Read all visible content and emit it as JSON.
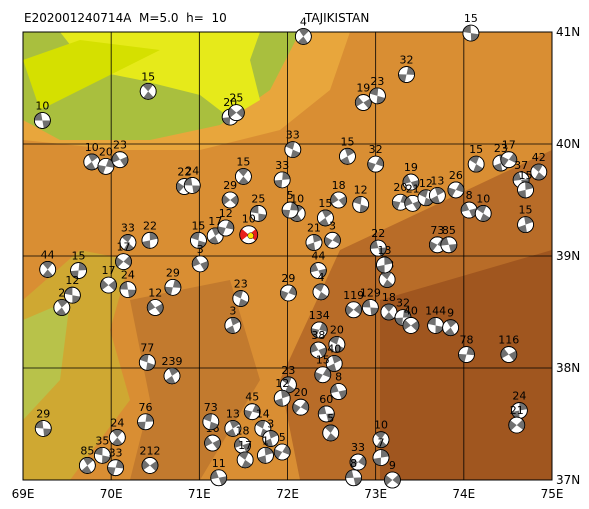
{
  "map": {
    "title": "E202001240714A  M=5.0  h=  10",
    "region": "TAJIKISTAN",
    "xlim": [
      69,
      75
    ],
    "ylim": [
      37,
      41
    ],
    "xticks": [
      {
        "value": 69,
        "label": "69E"
      },
      {
        "value": 70,
        "label": "70E"
      },
      {
        "value": 71,
        "label": "71E"
      },
      {
        "value": 72,
        "label": "72E"
      },
      {
        "value": 73,
        "label": "73E"
      },
      {
        "value": 74,
        "label": "74E"
      },
      {
        "value": 75,
        "label": "75E"
      }
    ],
    "yticks": [
      {
        "value": 37,
        "label": "37N"
      },
      {
        "value": 38,
        "label": "38N"
      },
      {
        "value": 39,
        "label": "39N"
      },
      {
        "value": 40,
        "label": "40N"
      },
      {
        "value": 41,
        "label": "41N"
      }
    ],
    "grid": true,
    "ball_color": "#707070",
    "main_event": {
      "lon": 71.56,
      "lat": 39.19,
      "depth": 10,
      "color": "#e8201c"
    },
    "events": [
      {
        "lon": 69.22,
        "lat": 40.21,
        "depth": 10
      },
      {
        "lon": 70.42,
        "lat": 40.47,
        "depth": 15
      },
      {
        "lon": 71.35,
        "lat": 40.24,
        "depth": 20
      },
      {
        "lon": 71.42,
        "lat": 40.28,
        "depth": 25
      },
      {
        "lon": 74.08,
        "lat": 40.99,
        "depth": 15
      },
      {
        "lon": 72.18,
        "lat": 40.96,
        "depth": 4
      },
      {
        "lon": 73.35,
        "lat": 40.62,
        "depth": 32
      },
      {
        "lon": 72.86,
        "lat": 40.37,
        "depth": 19
      },
      {
        "lon": 73.02,
        "lat": 40.43,
        "depth": 23
      },
      {
        "lon": 69.78,
        "lat": 39.84,
        "depth": 10
      },
      {
        "lon": 69.94,
        "lat": 39.8,
        "depth": 20
      },
      {
        "lon": 70.1,
        "lat": 39.86,
        "depth": 23
      },
      {
        "lon": 72.06,
        "lat": 39.95,
        "depth": 33
      },
      {
        "lon": 72.68,
        "lat": 39.89,
        "depth": 15
      },
      {
        "lon": 73.0,
        "lat": 39.82,
        "depth": 32
      },
      {
        "lon": 73.4,
        "lat": 39.66,
        "depth": 19
      },
      {
        "lon": 74.14,
        "lat": 39.82,
        "depth": 15
      },
      {
        "lon": 74.42,
        "lat": 39.83,
        "depth": 23
      },
      {
        "lon": 74.51,
        "lat": 39.86,
        "depth": 17
      },
      {
        "lon": 74.65,
        "lat": 39.68,
        "depth": 37
      },
      {
        "lon": 74.85,
        "lat": 39.75,
        "depth": 42
      },
      {
        "lon": 74.7,
        "lat": 39.59,
        "depth": 15
      },
      {
        "lon": 70.83,
        "lat": 39.62,
        "depth": 22
      },
      {
        "lon": 70.92,
        "lat": 39.63,
        "depth": 24
      },
      {
        "lon": 71.5,
        "lat": 39.71,
        "depth": 15
      },
      {
        "lon": 71.94,
        "lat": 39.68,
        "depth": 33
      },
      {
        "lon": 71.35,
        "lat": 39.5,
        "depth": 29
      },
      {
        "lon": 71.67,
        "lat": 39.38,
        "depth": 25
      },
      {
        "lon": 72.11,
        "lat": 39.38,
        "depth": 10
      },
      {
        "lon": 72.03,
        "lat": 39.41,
        "depth": 5
      },
      {
        "lon": 72.58,
        "lat": 39.5,
        "depth": 18
      },
      {
        "lon": 72.83,
        "lat": 39.46,
        "depth": 12
      },
      {
        "lon": 72.43,
        "lat": 39.34,
        "depth": 15
      },
      {
        "lon": 73.28,
        "lat": 39.48,
        "depth": 20
      },
      {
        "lon": 73.42,
        "lat": 39.47,
        "depth": 21
      },
      {
        "lon": 73.57,
        "lat": 39.52,
        "depth": 12
      },
      {
        "lon": 73.7,
        "lat": 39.54,
        "depth": 13
      },
      {
        "lon": 73.91,
        "lat": 39.59,
        "depth": 26
      },
      {
        "lon": 74.06,
        "lat": 39.41,
        "depth": 8
      },
      {
        "lon": 74.22,
        "lat": 39.38,
        "depth": 10
      },
      {
        "lon": 74.7,
        "lat": 39.28,
        "depth": 15
      },
      {
        "lon": 73.7,
        "lat": 39.1,
        "depth": 73
      },
      {
        "lon": 73.83,
        "lat": 39.1,
        "depth": 85
      },
      {
        "lon": 70.19,
        "lat": 39.12,
        "depth": 33
      },
      {
        "lon": 70.44,
        "lat": 39.14,
        "depth": 22
      },
      {
        "lon": 70.14,
        "lat": 38.95,
        "depth": 17
      },
      {
        "lon": 70.19,
        "lat": 38.7,
        "depth": 24
      },
      {
        "lon": 69.28,
        "lat": 38.88,
        "depth": 44
      },
      {
        "lon": 69.63,
        "lat": 38.87,
        "depth": 15
      },
      {
        "lon": 69.97,
        "lat": 38.74,
        "depth": 17
      },
      {
        "lon": 69.56,
        "lat": 38.65,
        "depth": 12
      },
      {
        "lon": 69.44,
        "lat": 38.54,
        "depth": 2
      },
      {
        "lon": 70.7,
        "lat": 38.72,
        "depth": 29
      },
      {
        "lon": 70.5,
        "lat": 38.54,
        "depth": 12
      },
      {
        "lon": 70.99,
        "lat": 39.14,
        "depth": 15
      },
      {
        "lon": 71.18,
        "lat": 39.18,
        "depth": 17
      },
      {
        "lon": 71.3,
        "lat": 39.25,
        "depth": 12
      },
      {
        "lon": 71.01,
        "lat": 38.93,
        "depth": 3
      },
      {
        "lon": 71.47,
        "lat": 38.62,
        "depth": 23
      },
      {
        "lon": 71.38,
        "lat": 38.38,
        "depth": 3
      },
      {
        "lon": 72.01,
        "lat": 38.67,
        "depth": 29
      },
      {
        "lon": 72.35,
        "lat": 38.87,
        "depth": 44
      },
      {
        "lon": 72.38,
        "lat": 38.68,
        "depth": 4
      },
      {
        "lon": 72.3,
        "lat": 39.12,
        "depth": 21
      },
      {
        "lon": 72.51,
        "lat": 39.14,
        "depth": 3
      },
      {
        "lon": 73.03,
        "lat": 39.07,
        "depth": 22
      },
      {
        "lon": 73.13,
        "lat": 38.79,
        "depth": 18
      },
      {
        "lon": 73.1,
        "lat": 38.92,
        "depth": 13
      },
      {
        "lon": 72.75,
        "lat": 38.52,
        "depth": 119
      },
      {
        "lon": 72.94,
        "lat": 38.54,
        "depth": 129
      },
      {
        "lon": 73.15,
        "lat": 38.5,
        "depth": 18
      },
      {
        "lon": 73.31,
        "lat": 38.45,
        "depth": 32
      },
      {
        "lon": 73.4,
        "lat": 38.38,
        "depth": 40
      },
      {
        "lon": 73.68,
        "lat": 38.38,
        "depth": 144
      },
      {
        "lon": 73.85,
        "lat": 38.36,
        "depth": 9
      },
      {
        "lon": 74.03,
        "lat": 38.12,
        "depth": 78
      },
      {
        "lon": 74.51,
        "lat": 38.12,
        "depth": 116
      },
      {
        "lon": 70.41,
        "lat": 38.05,
        "depth": 77
      },
      {
        "lon": 70.69,
        "lat": 37.93,
        "depth": 239
      },
      {
        "lon": 72.36,
        "lat": 38.34,
        "depth": 134
      },
      {
        "lon": 72.35,
        "lat": 38.16,
        "depth": 38
      },
      {
        "lon": 72.56,
        "lat": 38.21,
        "depth": 20
      },
      {
        "lon": 72.53,
        "lat": 38.04,
        "depth": 40
      },
      {
        "lon": 72.4,
        "lat": 37.94,
        "depth": 15
      },
      {
        "lon": 72.58,
        "lat": 37.79,
        "depth": 8
      },
      {
        "lon": 72.01,
        "lat": 37.85,
        "depth": 23
      },
      {
        "lon": 71.94,
        "lat": 37.73,
        "depth": 12
      },
      {
        "lon": 72.15,
        "lat": 37.65,
        "depth": 20
      },
      {
        "lon": 72.44,
        "lat": 37.59,
        "depth": 60
      },
      {
        "lon": 72.49,
        "lat": 37.42,
        "depth": 5
      },
      {
        "lon": 74.63,
        "lat": 37.62,
        "depth": 24
      },
      {
        "lon": 74.6,
        "lat": 37.49,
        "depth": 21
      },
      {
        "lon": 69.23,
        "lat": 37.46,
        "depth": 29
      },
      {
        "lon": 70.07,
        "lat": 37.38,
        "depth": 24
      },
      {
        "lon": 70.39,
        "lat": 37.52,
        "depth": 76
      },
      {
        "lon": 70.44,
        "lat": 37.13,
        "depth": 212
      },
      {
        "lon": 69.9,
        "lat": 37.22,
        "depth": 35
      },
      {
        "lon": 69.73,
        "lat": 37.13,
        "depth": 85
      },
      {
        "lon": 70.05,
        "lat": 37.11,
        "depth": 33
      },
      {
        "lon": 71.15,
        "lat": 37.33,
        "depth": 16
      },
      {
        "lon": 71.13,
        "lat": 37.52,
        "depth": 73
      },
      {
        "lon": 71.38,
        "lat": 37.46,
        "depth": 13
      },
      {
        "lon": 71.6,
        "lat": 37.61,
        "depth": 45
      },
      {
        "lon": 71.49,
        "lat": 37.31,
        "depth": 18
      },
      {
        "lon": 71.72,
        "lat": 37.46,
        "depth": 14
      },
      {
        "lon": 71.81,
        "lat": 37.37,
        "depth": 3
      },
      {
        "lon": 71.94,
        "lat": 37.25,
        "depth": 5
      },
      {
        "lon": 71.22,
        "lat": 37.02,
        "depth": 11
      },
      {
        "lon": 71.52,
        "lat": 37.18,
        "depth": 17
      },
      {
        "lon": 71.75,
        "lat": 37.22,
        "depth": 1
      },
      {
        "lon": 72.8,
        "lat": 37.16,
        "depth": 33
      },
      {
        "lon": 72.75,
        "lat": 37.02,
        "depth": 8
      },
      {
        "lon": 73.06,
        "lat": 37.36,
        "depth": 10
      },
      {
        "lon": 73.06,
        "lat": 37.2,
        "depth": 7
      },
      {
        "lon": 73.19,
        "lat": 37.0,
        "depth": 9
      }
    ]
  }
}
